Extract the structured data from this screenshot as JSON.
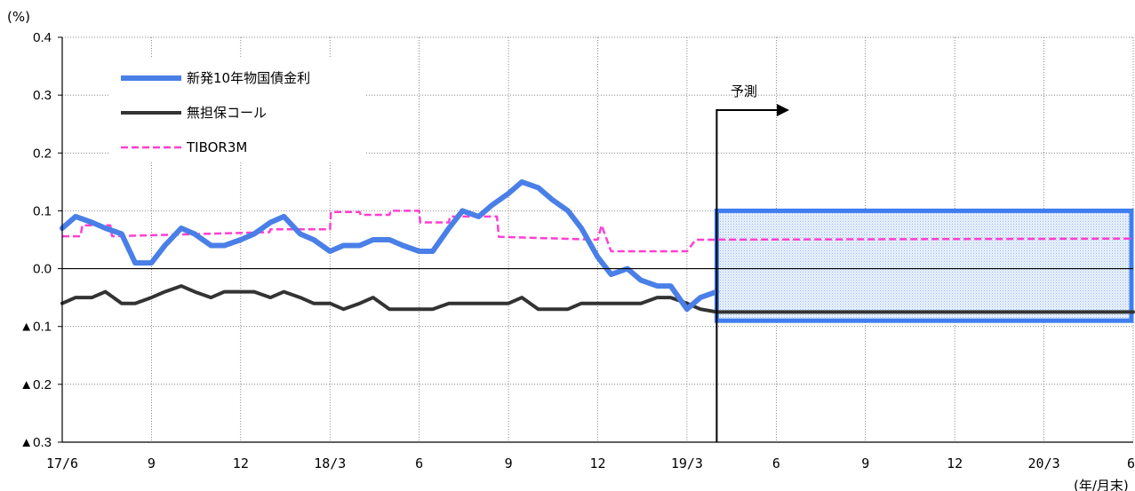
{
  "chart_data": {
    "type": "line",
    "y_unit": "(%)",
    "x_unit": "(年/月末)",
    "ylim": [
      -0.3,
      0.4
    ],
    "yticks": [
      {
        "value": 0.4,
        "label": "0.4"
      },
      {
        "value": 0.3,
        "label": "0.3"
      },
      {
        "value": 0.2,
        "label": "0.2"
      },
      {
        "value": 0.1,
        "label": "0.1"
      },
      {
        "value": 0.0,
        "label": "0.0"
      },
      {
        "value": -0.1,
        "label": "▲0.1"
      },
      {
        "value": -0.2,
        "label": "▲0.2"
      },
      {
        "value": -0.3,
        "label": "▲0.3"
      }
    ],
    "xticks": [
      {
        "date": "2017-06",
        "label": "17/6"
      },
      {
        "date": "2017-09",
        "label": "9"
      },
      {
        "date": "2017-12",
        "label": "12"
      },
      {
        "date": "2018-03",
        "label": "18/3"
      },
      {
        "date": "2018-06",
        "label": "6"
      },
      {
        "date": "2018-09",
        "label": "9"
      },
      {
        "date": "2018-12",
        "label": "12"
      },
      {
        "date": "2019-03",
        "label": "19/3"
      },
      {
        "date": "2019-06",
        "label": "6"
      },
      {
        "date": "2019-09",
        "label": "9"
      },
      {
        "date": "2019-12",
        "label": "12"
      },
      {
        "date": "2020-03",
        "label": "20/3"
      },
      {
        "date": "2020-06",
        "label": "6"
      }
    ],
    "grid": true,
    "legend_position": "top-left",
    "forecast": {
      "label": "予測",
      "start": "2019-04",
      "end": "2020-06",
      "band": [
        -0.09,
        0.1
      ]
    },
    "series": [
      {
        "name": "新発10年物国債金利",
        "color": "#4a7fe8",
        "style": "solid-thick",
        "points": [
          [
            "2017-06",
            0.07
          ],
          [
            "2017-06-15",
            0.09
          ],
          [
            "2017-07",
            0.08
          ],
          [
            "2017-07-15",
            0.07
          ],
          [
            "2017-08",
            0.06
          ],
          [
            "2017-08-15",
            0.01
          ],
          [
            "2017-09",
            0.01
          ],
          [
            "2017-09-15",
            0.04
          ],
          [
            "2017-10",
            0.07
          ],
          [
            "2017-10-15",
            0.06
          ],
          [
            "2017-11",
            0.04
          ],
          [
            "2017-11-15",
            0.04
          ],
          [
            "2017-12",
            0.05
          ],
          [
            "2017-12-15",
            0.06
          ],
          [
            "2018-01",
            0.08
          ],
          [
            "2018-01-15",
            0.09
          ],
          [
            "2018-02",
            0.06
          ],
          [
            "2018-02-15",
            0.05
          ],
          [
            "2018-03",
            0.03
          ],
          [
            "2018-03-15",
            0.04
          ],
          [
            "2018-04",
            0.04
          ],
          [
            "2018-04-15",
            0.05
          ],
          [
            "2018-05",
            0.05
          ],
          [
            "2018-05-15",
            0.04
          ],
          [
            "2018-06",
            0.03
          ],
          [
            "2018-06-15",
            0.03
          ],
          [
            "2018-07",
            0.07
          ],
          [
            "2018-07-15",
            0.1
          ],
          [
            "2018-08",
            0.09
          ],
          [
            "2018-08-15",
            0.11
          ],
          [
            "2018-09",
            0.13
          ],
          [
            "2018-09-15",
            0.15
          ],
          [
            "2018-10",
            0.14
          ],
          [
            "2018-10-15",
            0.12
          ],
          [
            "2018-11",
            0.1
          ],
          [
            "2018-11-15",
            0.07
          ],
          [
            "2018-12",
            0.02
          ],
          [
            "2018-12-15",
            -0.01
          ],
          [
            "2019-01",
            0.0
          ],
          [
            "2019-01-15",
            -0.02
          ],
          [
            "2019-02",
            -0.03
          ],
          [
            "2019-02-15",
            -0.03
          ],
          [
            "2019-03",
            -0.07
          ],
          [
            "2019-03-15",
            -0.05
          ],
          [
            "2019-04",
            -0.04
          ]
        ]
      },
      {
        "name": "無担保コール",
        "color": "#333333",
        "style": "solid",
        "points": [
          [
            "2017-06",
            -0.06
          ],
          [
            "2017-06-15",
            -0.05
          ],
          [
            "2017-07",
            -0.05
          ],
          [
            "2017-07-15",
            -0.04
          ],
          [
            "2017-08",
            -0.06
          ],
          [
            "2017-08-15",
            -0.06
          ],
          [
            "2017-09",
            -0.05
          ],
          [
            "2017-09-15",
            -0.04
          ],
          [
            "2017-10",
            -0.03
          ],
          [
            "2017-10-15",
            -0.04
          ],
          [
            "2017-11",
            -0.05
          ],
          [
            "2017-11-15",
            -0.04
          ],
          [
            "2017-12",
            -0.04
          ],
          [
            "2017-12-15",
            -0.04
          ],
          [
            "2018-01",
            -0.05
          ],
          [
            "2018-01-15",
            -0.04
          ],
          [
            "2018-02",
            -0.05
          ],
          [
            "2018-02-15",
            -0.06
          ],
          [
            "2018-03",
            -0.06
          ],
          [
            "2018-03-15",
            -0.07
          ],
          [
            "2018-04",
            -0.06
          ],
          [
            "2018-04-15",
            -0.05
          ],
          [
            "2018-05",
            -0.07
          ],
          [
            "2018-05-15",
            -0.07
          ],
          [
            "2018-06",
            -0.07
          ],
          [
            "2018-06-15",
            -0.07
          ],
          [
            "2018-07",
            -0.06
          ],
          [
            "2018-07-15",
            -0.06
          ],
          [
            "2018-08",
            -0.06
          ],
          [
            "2018-08-15",
            -0.06
          ],
          [
            "2018-09",
            -0.06
          ],
          [
            "2018-09-15",
            -0.05
          ],
          [
            "2018-10",
            -0.07
          ],
          [
            "2018-10-15",
            -0.07
          ],
          [
            "2018-11",
            -0.07
          ],
          [
            "2018-11-15",
            -0.06
          ],
          [
            "2018-12",
            -0.06
          ],
          [
            "2018-12-15",
            -0.06
          ],
          [
            "2019-01",
            -0.06
          ],
          [
            "2019-01-15",
            -0.06
          ],
          [
            "2019-02",
            -0.05
          ],
          [
            "2019-02-15",
            -0.05
          ],
          [
            "2019-03",
            -0.06
          ],
          [
            "2019-03-15",
            -0.07
          ],
          [
            "2019-04",
            -0.075
          ],
          [
            "2020-06",
            -0.075
          ]
        ]
      },
      {
        "name": "TIBOR3M",
        "color": "#ff3fd2",
        "style": "dashed",
        "points": [
          [
            "2017-06",
            0.056
          ],
          [
            "2017-06-20",
            0.056
          ],
          [
            "2017-06-22",
            0.075
          ],
          [
            "2017-07-20",
            0.075
          ],
          [
            "2017-07-22",
            0.056
          ],
          [
            "2017-12-31",
            0.063
          ],
          [
            "2018-01-01",
            0.068
          ],
          [
            "2018-03-01",
            0.068
          ],
          [
            "2018-03-02",
            0.098
          ],
          [
            "2018-04-01",
            0.098
          ],
          [
            "2018-04-02",
            0.093
          ],
          [
            "2018-05-01",
            0.093
          ],
          [
            "2018-05-02",
            0.1
          ],
          [
            "2018-06-01",
            0.1
          ],
          [
            "2018-06-02",
            0.08
          ],
          [
            "2018-07-01",
            0.08
          ],
          [
            "2018-07-02",
            0.09
          ],
          [
            "2018-08-20",
            0.09
          ],
          [
            "2018-08-22",
            0.055
          ],
          [
            "2018-12-01",
            0.05
          ],
          [
            "2018-12-05",
            0.075
          ],
          [
            "2018-12-15",
            0.03
          ],
          [
            "2019-03-01",
            0.03
          ],
          [
            "2019-03-10",
            0.05
          ],
          [
            "2020-06",
            0.052
          ]
        ]
      }
    ]
  }
}
